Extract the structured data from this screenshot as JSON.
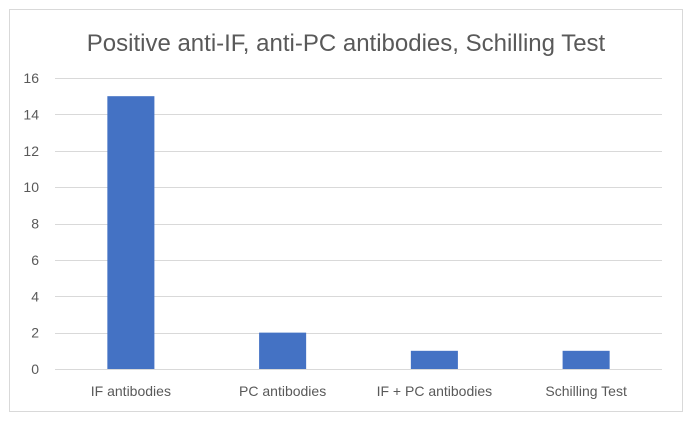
{
  "chart_data": {
    "type": "bar",
    "title": "Positive anti-IF, anti-PC antibodies, Schilling Test",
    "categories": [
      "IF antibodies",
      "PC antibodies",
      "IF + PC antibodies",
      "Schilling Test"
    ],
    "values": [
      15,
      2,
      1,
      1
    ],
    "xlabel": "",
    "ylabel": "",
    "ylim": [
      0,
      16
    ],
    "yticks": [
      0,
      2,
      4,
      6,
      8,
      10,
      12,
      14,
      16
    ],
    "grid": true,
    "legend": "none",
    "bar_color": "#4472C4",
    "grid_color": "#D9D9D9",
    "border_color": "#D9D9D9",
    "text_color": "#595959"
  }
}
